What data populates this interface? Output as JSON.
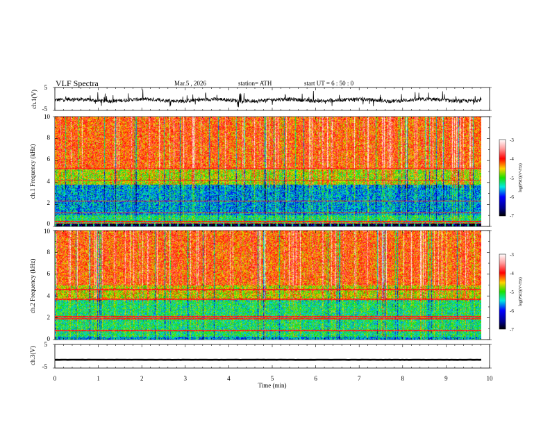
{
  "header": {
    "title": "VLF  Spectra",
    "date": "Mar.5  , 2026",
    "station": "station= ATH",
    "start": "start  UT  =   6  : 50 : 0"
  },
  "colorbar_label": "log(PSD)(V²/Hz)",
  "chart_data": [
    {
      "id": "ch1-waveform",
      "type": "line",
      "title": "",
      "ylabel": "ch.1(V)",
      "ylim": [
        -5,
        5
      ],
      "yticks": [
        "5",
        "-5"
      ],
      "xlim": [
        0,
        10
      ],
      "series": [
        {
          "name": "ch.1",
          "approx_mean": -0.5,
          "approx_amplitude": 2.0,
          "noise": "burst-like"
        }
      ]
    },
    {
      "id": "ch1-spectrogram",
      "type": "heatmap",
      "title": "",
      "ylabel": "ch.1 Frequency  (kHz)",
      "ylim": [
        0,
        10
      ],
      "yticks": [
        "0",
        "2",
        "4",
        "6",
        "8",
        "10"
      ],
      "xlim": [
        0,
        9.8
      ],
      "colorbar": {
        "label": "log(PSD)(V²/Hz)",
        "range": [
          -7,
          -3
        ],
        "ticks": [
          "-3",
          "-4",
          "-5",
          "-6",
          "-7"
        ]
      },
      "bands": [
        {
          "freq": [
            0,
            0.25
          ],
          "level": "low-intensity gap"
        },
        {
          "freq": [
            0.3,
            1.0
          ],
          "level": -5.4
        },
        {
          "freq": [
            1.0,
            3.8
          ],
          "level": -5.8
        },
        {
          "freq": [
            3.8,
            5.2
          ],
          "level": -4.9
        },
        {
          "freq": [
            5.2,
            10
          ],
          "level": -4.3
        }
      ],
      "lines_khz": [
        5.3,
        4.2,
        2.3,
        1.2,
        0.4
      ]
    },
    {
      "id": "ch2-spectrogram",
      "type": "heatmap",
      "title": "",
      "ylabel": "ch.2 Frequency  (kHz)",
      "ylim": [
        0,
        10
      ],
      "yticks": [
        "0",
        "2",
        "4",
        "6",
        "8",
        "10"
      ],
      "xlim": [
        0,
        9.8
      ],
      "colorbar": {
        "label": "log(PSD)(V²/Hz)",
        "range": [
          -7,
          -3
        ],
        "ticks": [
          "-3",
          "-4",
          "-5",
          "-6",
          "-7"
        ]
      },
      "bands": [
        {
          "freq": [
            0,
            0.2
          ],
          "level": -5.8
        },
        {
          "freq": [
            0.2,
            3.6
          ],
          "level": -5.4
        },
        {
          "freq": [
            3.6,
            5.0
          ],
          "level": -4.8
        },
        {
          "freq": [
            5.0,
            10
          ],
          "level": -4.3
        }
      ],
      "lines_khz": [
        4.6,
        3.7,
        2.1,
        1.9,
        0.8
      ]
    },
    {
      "id": "ch3-waveform",
      "type": "line",
      "title": "",
      "ylabel": "ch.3(V)",
      "ylim": [
        -5,
        5
      ],
      "yticks": [
        "5",
        "-5"
      ],
      "xlim": [
        0,
        10
      ],
      "xticks": [
        "0",
        "1",
        "2",
        "3",
        "4",
        "5",
        "6",
        "7",
        "8",
        "9",
        "10"
      ],
      "xlabel": "Time  (min)",
      "series": [
        {
          "name": "ch.3",
          "approx_mean": -1.5,
          "approx_amplitude": 0.1
        }
      ]
    }
  ]
}
